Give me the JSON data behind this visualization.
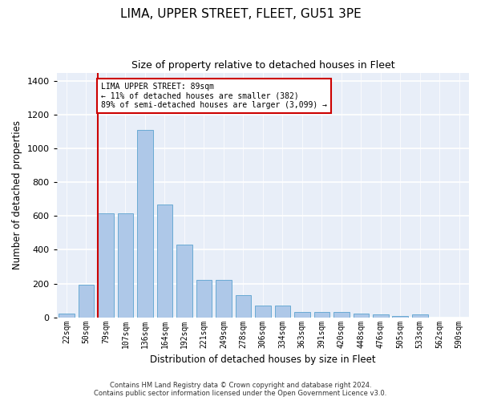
{
  "title": "LIMA, UPPER STREET, FLEET, GU51 3PE",
  "subtitle": "Size of property relative to detached houses in Fleet",
  "xlabel": "Distribution of detached houses by size in Fleet",
  "ylabel": "Number of detached properties",
  "footer1": "Contains HM Land Registry data © Crown copyright and database right 2024.",
  "footer2": "Contains public sector information licensed under the Open Government Licence v3.0.",
  "annotation_title": "LIMA UPPER STREET: 89sqm",
  "annotation_line1": "← 11% of detached houses are smaller (382)",
  "annotation_line2": "89% of semi-detached houses are larger (3,099) →",
  "bar_color": "#aec8e8",
  "bar_edge_color": "#6aaad4",
  "line_color": "#cc0000",
  "annotation_box_color": "#cc0000",
  "background_color": "#e8eef8",
  "categories": [
    "22sqm",
    "50sqm",
    "79sqm",
    "107sqm",
    "136sqm",
    "164sqm",
    "192sqm",
    "221sqm",
    "249sqm",
    "278sqm",
    "306sqm",
    "334sqm",
    "363sqm",
    "391sqm",
    "420sqm",
    "448sqm",
    "476sqm",
    "505sqm",
    "533sqm",
    "562sqm",
    "590sqm"
  ],
  "values": [
    20,
    195,
    615,
    615,
    1110,
    670,
    430,
    220,
    220,
    130,
    70,
    70,
    30,
    30,
    30,
    20,
    15,
    10,
    15,
    0,
    0
  ],
  "red_line_x": 1.6,
  "ylim": [
    0,
    1450
  ],
  "yticks": [
    0,
    200,
    400,
    600,
    800,
    1000,
    1200,
    1400
  ],
  "grid_color": "#d0d8e8",
  "figsize": [
    6.0,
    5.0
  ],
  "dpi": 100
}
